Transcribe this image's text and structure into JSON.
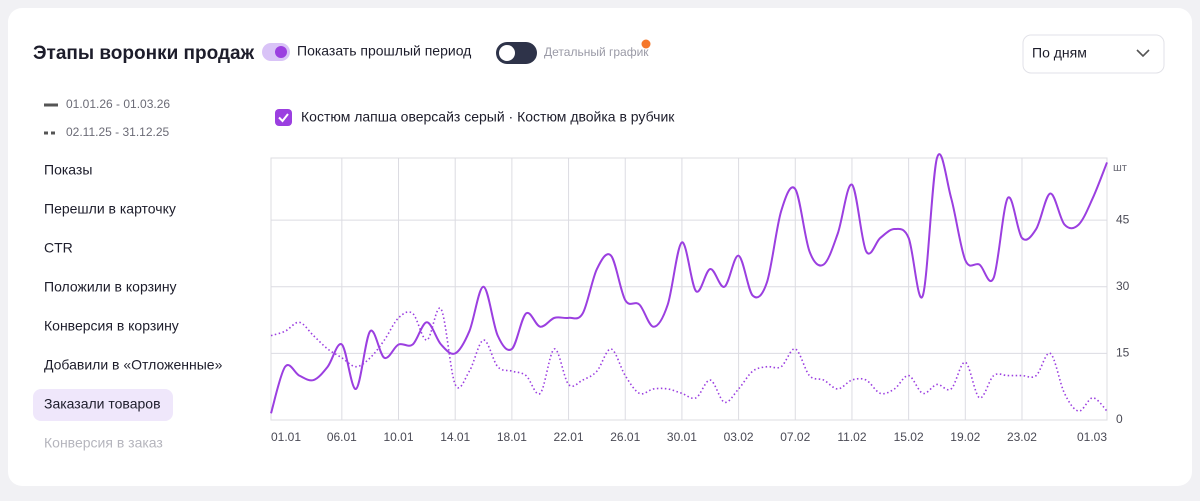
{
  "header": {
    "title": "Этапы воронки продаж",
    "toggle_prev": "Показать прошлый период",
    "toggle_detail": "Детальный график",
    "period_select": "По дням"
  },
  "product_filter": "Костюм лапша оверсайз серый · Костюм двойка в рубчик",
  "metrics": [
    "Показы",
    "Перешли в карточку",
    "CTR",
    "Положили в корзину",
    "Конверсия в корзину",
    "Добавили в «Отложенные»",
    "Заказали товаров",
    "Конверсия в заказ"
  ],
  "selected_metric": 6,
  "chart_data": {
    "type": "line",
    "y_label": "шт",
    "color": "#9b3fe0",
    "categories": [
      "01.01",
      null,
      null,
      null,
      null,
      "06.01",
      null,
      null,
      null,
      "10.01",
      null,
      null,
      null,
      "14.01",
      null,
      null,
      null,
      "18.01",
      null,
      null,
      null,
      "22.01",
      null,
      null,
      null,
      "26.01",
      null,
      null,
      null,
      "30.01",
      null,
      null,
      null,
      "03.02",
      null,
      null,
      null,
      "07.02",
      null,
      null,
      null,
      "11.02",
      null,
      null,
      null,
      "15.02",
      null,
      null,
      null,
      "19.02",
      null,
      null,
      null,
      "23.02",
      null,
      null,
      null,
      null,
      null,
      "01.03"
    ],
    "series": [
      {
        "name": "01.01.26 - 01.03.26",
        "style": "solid",
        "color": "#9b3fe0",
        "values": [
          1.5,
          12,
          10,
          9,
          12,
          17,
          7,
          20,
          14,
          17,
          17,
          22,
          17,
          15,
          20,
          30,
          19,
          16,
          24,
          21,
          23,
          23,
          24,
          34,
          37,
          27,
          26,
          21,
          26,
          40,
          29,
          34,
          30,
          37,
          28,
          31,
          47,
          52,
          38,
          35,
          42,
          53,
          38,
          41,
          43,
          41,
          28,
          59,
          50,
          36,
          35,
          32,
          50,
          41,
          43,
          51,
          44,
          44,
          50,
          58
        ]
      },
      {
        "name": "02.11.25 - 31.12.25",
        "style": "dotted",
        "color": "#9b3fe0",
        "values": [
          19,
          20,
          22,
          19,
          16,
          14,
          12,
          14,
          18,
          23,
          24,
          18,
          25,
          8,
          11,
          18,
          12,
          11,
          10,
          6,
          16,
          8,
          9,
          11,
          16,
          10,
          6,
          7,
          7,
          6,
          5,
          9,
          4,
          7,
          11,
          12,
          12,
          16,
          10,
          9,
          7,
          9,
          9,
          6,
          7,
          10,
          6,
          8,
          7,
          13,
          5,
          10,
          10,
          10,
          10,
          15,
          6,
          2,
          5,
          2
        ]
      }
    ],
    "ylim": [
      0,
      59
    ],
    "yticks": [
      0,
      15,
      30,
      45
    ],
    "grid": true
  }
}
